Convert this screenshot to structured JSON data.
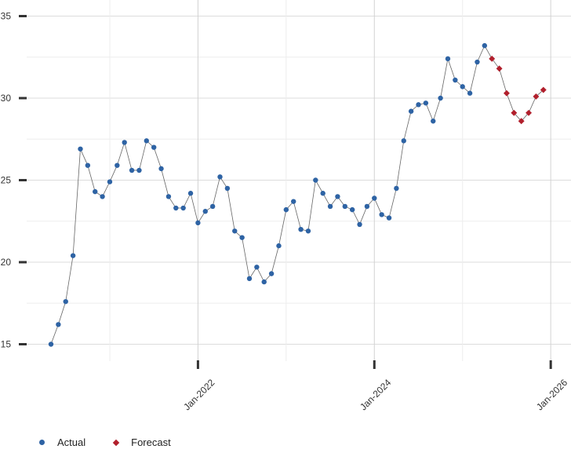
{
  "chart_data": {
    "type": "line",
    "title": "",
    "xlabel": "",
    "ylabel": "",
    "ylim": [
      15,
      35
    ],
    "y_ticks": [
      "15",
      "20",
      "25",
      "30",
      "35"
    ],
    "x_ticks": [
      "Jan-2022",
      "Jan-2024",
      "Jan-2026"
    ],
    "grid": true,
    "legend_position": "bottom-left",
    "colors": {
      "actual": "#2e63a4",
      "forecast": "#b11f2c",
      "line": "#666666"
    },
    "series": [
      {
        "name": "Actual",
        "marker": "circle",
        "points": [
          [
            "2020-05",
            15.0
          ],
          [
            "2020-06",
            16.2
          ],
          [
            "2020-07",
            17.6
          ],
          [
            "2020-08",
            20.4
          ],
          [
            "2020-09",
            26.9
          ],
          [
            "2020-10",
            25.9
          ],
          [
            "2020-11",
            24.3
          ],
          [
            "2020-12",
            24.0
          ],
          [
            "2021-01",
            24.9
          ],
          [
            "2021-02",
            25.9
          ],
          [
            "2021-03",
            27.3
          ],
          [
            "2021-04",
            25.6
          ],
          [
            "2021-05",
            25.6
          ],
          [
            "2021-06",
            27.4
          ],
          [
            "2021-07",
            27.0
          ],
          [
            "2021-08",
            25.7
          ],
          [
            "2021-09",
            24.0
          ],
          [
            "2021-10",
            23.3
          ],
          [
            "2021-11",
            23.3
          ],
          [
            "2021-12",
            24.2
          ],
          [
            "2022-01",
            22.4
          ],
          [
            "2022-02",
            23.1
          ],
          [
            "2022-03",
            23.4
          ],
          [
            "2022-04",
            25.2
          ],
          [
            "2022-05",
            24.5
          ],
          [
            "2022-06",
            21.9
          ],
          [
            "2022-07",
            21.5
          ],
          [
            "2022-08",
            19.0
          ],
          [
            "2022-09",
            19.7
          ],
          [
            "2022-10",
            18.8
          ],
          [
            "2022-11",
            19.3
          ],
          [
            "2022-12",
            21.0
          ],
          [
            "2023-01",
            23.2
          ],
          [
            "2023-02",
            23.7
          ],
          [
            "2023-03",
            22.0
          ],
          [
            "2023-04",
            21.9
          ],
          [
            "2023-05",
            25.0
          ],
          [
            "2023-06",
            24.2
          ],
          [
            "2023-07",
            23.4
          ],
          [
            "2023-08",
            24.0
          ],
          [
            "2023-09",
            23.4
          ],
          [
            "2023-10",
            23.2
          ],
          [
            "2023-11",
            22.3
          ],
          [
            "2023-12",
            23.4
          ],
          [
            "2024-01",
            23.9
          ],
          [
            "2024-02",
            22.9
          ],
          [
            "2024-03",
            22.7
          ],
          [
            "2024-04",
            24.5
          ],
          [
            "2024-05",
            27.4
          ],
          [
            "2024-06",
            29.2
          ],
          [
            "2024-07",
            29.6
          ],
          [
            "2024-08",
            29.7
          ],
          [
            "2024-09",
            28.6
          ],
          [
            "2024-10",
            30.0
          ],
          [
            "2024-11",
            32.4
          ],
          [
            "2024-12",
            31.1
          ],
          [
            "2025-01",
            30.7
          ],
          [
            "2025-02",
            30.3
          ],
          [
            "2025-03",
            32.2
          ],
          [
            "2025-04",
            33.2
          ]
        ]
      },
      {
        "name": "Forecast",
        "marker": "diamond",
        "points": [
          [
            "2025-05",
            32.4
          ],
          [
            "2025-06",
            31.8
          ],
          [
            "2025-07",
            30.3
          ],
          [
            "2025-08",
            29.1
          ],
          [
            "2025-09",
            28.6
          ],
          [
            "2025-10",
            29.1
          ],
          [
            "2025-11",
            30.1
          ],
          [
            "2025-12",
            30.5
          ]
        ]
      }
    ]
  },
  "legend": {
    "actual_label": "Actual",
    "forecast_label": "Forecast"
  }
}
